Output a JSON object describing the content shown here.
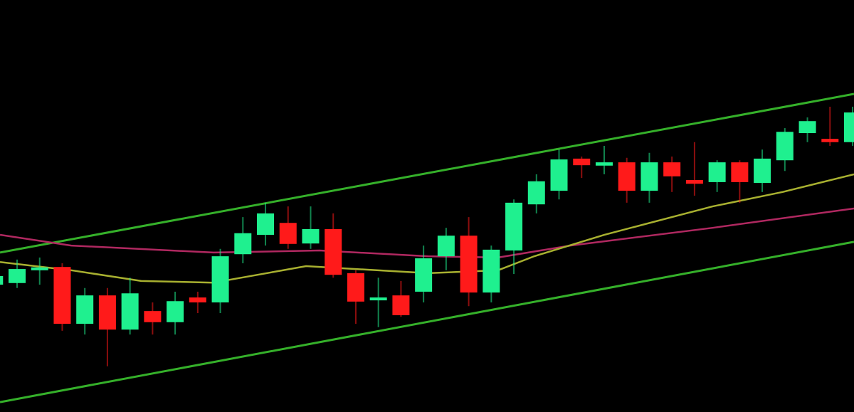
{
  "chart_data": {
    "type": "candlestick",
    "title": "",
    "xlabel": "",
    "ylabel": "",
    "grid": false,
    "ylim": [
      0,
      100
    ],
    "xlim": [
      -0.25,
      38.1
    ],
    "colors": {
      "background": "#000000",
      "up": "#1ff08f",
      "down": "#ff1a1a",
      "channel": "#35b02a",
      "ma_magenta": "#b02860",
      "ma_yellow": "#a8b030"
    },
    "candles": [
      {
        "o": 30.9,
        "h": 34.4,
        "l": 30.1,
        "c": 33.0
      },
      {
        "o": 31.3,
        "h": 37.0,
        "l": 30.1,
        "c": 34.7
      },
      {
        "o": 34.4,
        "h": 37.5,
        "l": 30.9,
        "c": 35.1
      },
      {
        "o": 35.2,
        "h": 36.1,
        "l": 19.7,
        "c": 21.4
      },
      {
        "o": 21.4,
        "h": 30.1,
        "l": 18.8,
        "c": 28.3
      },
      {
        "o": 28.3,
        "h": 30.1,
        "l": 11.1,
        "c": 20.0
      },
      {
        "o": 20.0,
        "h": 32.6,
        "l": 18.8,
        "c": 28.8
      },
      {
        "o": 24.5,
        "h": 26.6,
        "l": 18.8,
        "c": 21.8
      },
      {
        "o": 21.8,
        "h": 29.2,
        "l": 18.8,
        "c": 26.9
      },
      {
        "o": 27.8,
        "h": 29.2,
        "l": 24.0,
        "c": 26.6
      },
      {
        "o": 26.6,
        "h": 39.6,
        "l": 24.0,
        "c": 37.8
      },
      {
        "o": 38.3,
        "h": 47.3,
        "l": 36.1,
        "c": 43.4
      },
      {
        "o": 43.0,
        "h": 50.8,
        "l": 40.4,
        "c": 48.2
      },
      {
        "o": 45.9,
        "h": 49.9,
        "l": 39.6,
        "c": 40.8
      },
      {
        "o": 40.9,
        "h": 49.9,
        "l": 39.6,
        "c": 44.4
      },
      {
        "o": 44.4,
        "h": 48.2,
        "l": 32.6,
        "c": 33.3
      },
      {
        "o": 33.7,
        "h": 34.4,
        "l": 21.4,
        "c": 26.8
      },
      {
        "o": 27.1,
        "h": 32.6,
        "l": 20.6,
        "c": 27.8
      },
      {
        "o": 28.3,
        "h": 31.8,
        "l": 23.1,
        "c": 23.5
      },
      {
        "o": 29.2,
        "h": 40.4,
        "l": 26.6,
        "c": 37.3
      },
      {
        "o": 37.8,
        "h": 44.7,
        "l": 34.4,
        "c": 42.8
      },
      {
        "o": 42.8,
        "h": 47.3,
        "l": 25.7,
        "c": 29.0
      },
      {
        "o": 29.0,
        "h": 40.4,
        "l": 26.6,
        "c": 39.4
      },
      {
        "o": 39.2,
        "h": 51.6,
        "l": 33.5,
        "c": 50.8
      },
      {
        "o": 50.4,
        "h": 57.7,
        "l": 48.2,
        "c": 56.0
      },
      {
        "o": 53.7,
        "h": 63.7,
        "l": 51.6,
        "c": 61.3
      },
      {
        "o": 61.5,
        "h": 62.0,
        "l": 56.8,
        "c": 59.9
      },
      {
        "o": 59.8,
        "h": 64.6,
        "l": 57.7,
        "c": 60.6
      },
      {
        "o": 60.6,
        "h": 61.7,
        "l": 50.8,
        "c": 53.7
      },
      {
        "o": 53.7,
        "h": 62.9,
        "l": 50.8,
        "c": 60.6
      },
      {
        "o": 60.6,
        "h": 62.0,
        "l": 53.4,
        "c": 57.2
      },
      {
        "o": 56.3,
        "h": 65.5,
        "l": 52.5,
        "c": 55.4
      },
      {
        "o": 55.8,
        "h": 61.1,
        "l": 53.4,
        "c": 60.6
      },
      {
        "o": 60.6,
        "h": 61.1,
        "l": 50.8,
        "c": 55.8
      },
      {
        "o": 55.6,
        "h": 63.7,
        "l": 53.4,
        "c": 61.5
      },
      {
        "o": 61.1,
        "h": 68.9,
        "l": 58.5,
        "c": 68.0
      },
      {
        "o": 67.7,
        "h": 71.5,
        "l": 65.5,
        "c": 70.6
      },
      {
        "o": 66.3,
        "h": 74.1,
        "l": 64.6,
        "c": 65.5
      },
      {
        "o": 65.5,
        "h": 74.1,
        "l": 64.6,
        "c": 72.7
      }
    ],
    "lines": [
      {
        "id": "channel-upper",
        "color": "#35b02a",
        "points": [
          [
            0.2,
            38.7
          ],
          [
            38.1,
            77.2
          ]
        ]
      },
      {
        "id": "channel-lower",
        "color": "#35b02a",
        "points": [
          [
            0.2,
            2.4
          ],
          [
            38.1,
            41.3
          ]
        ]
      },
      {
        "id": "ma-magenta",
        "color": "#b02860",
        "points": [
          [
            0.2,
            43.0
          ],
          [
            3.4,
            40.4
          ],
          [
            9.7,
            38.7
          ],
          [
            14.4,
            39.2
          ],
          [
            19.2,
            37.8
          ],
          [
            22.3,
            37.5
          ],
          [
            25.5,
            40.4
          ],
          [
            31.8,
            44.7
          ],
          [
            38.1,
            49.4
          ]
        ]
      },
      {
        "id": "ma-yellow",
        "color": "#a8b030",
        "points": [
          [
            0.2,
            36.4
          ],
          [
            3.4,
            34.4
          ],
          [
            6.5,
            31.8
          ],
          [
            9.7,
            31.4
          ],
          [
            13.8,
            35.4
          ],
          [
            16.0,
            34.7
          ],
          [
            19.2,
            33.7
          ],
          [
            22.3,
            34.4
          ],
          [
            23.9,
            37.8
          ],
          [
            27.0,
            43.0
          ],
          [
            31.8,
            49.9
          ],
          [
            34.9,
            53.4
          ],
          [
            38.1,
            57.7
          ]
        ]
      }
    ]
  }
}
